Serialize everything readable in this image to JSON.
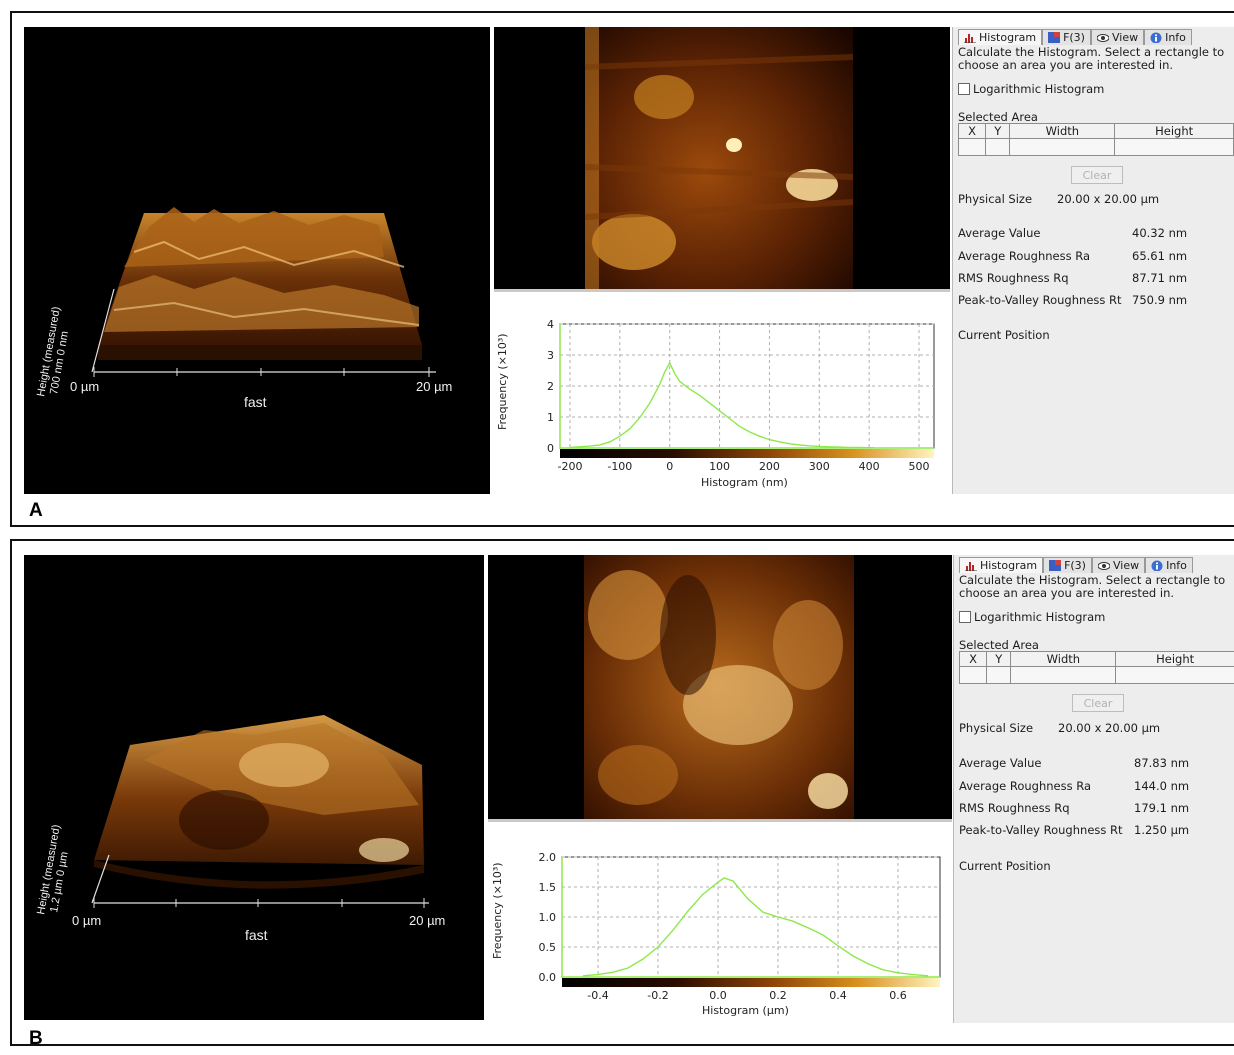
{
  "panels": [
    {
      "letter": "A",
      "view3d": {
        "x_start": "0 µm",
        "x_end": "20 µm",
        "x_label": "fast",
        "z_label_line1": "Height (measured)",
        "z_label_line2": "700 nm 0 nm"
      },
      "histogram": {
        "ylabel": "Frequency (×10³)",
        "xlabel": "Histogram (nm)",
        "yticks": [
          "0",
          "1",
          "2",
          "3",
          "4"
        ],
        "xticks": [
          "-200",
          "-100",
          "0",
          "100",
          "200",
          "300",
          "400",
          "500"
        ]
      },
      "side": {
        "tabs": [
          "Histogram",
          "F(3)",
          "View",
          "Info"
        ],
        "instructions": "Calculate the Histogram. Select a rectangle to choose an area you are interested in.",
        "log_checkbox": "Logarithmic Histogram",
        "selected_area_title": "Selected Area",
        "table_headers": [
          "X",
          "Y",
          "Width",
          "Height"
        ],
        "clear_label": "Clear",
        "physical_size_label": "Physical Size",
        "physical_size_value": "20.00 x 20.00 µm",
        "stats": [
          {
            "label": "Average Value",
            "value": "40.32 nm"
          },
          {
            "label": "Average Roughness Ra",
            "value": "65.61 nm"
          },
          {
            "label": "RMS Roughness Rq",
            "value": "87.71 nm"
          },
          {
            "label": "Peak-to-Valley Roughness Rt",
            "value": "750.9 nm"
          }
        ],
        "current_position_label": "Current Position"
      }
    },
    {
      "letter": "B",
      "view3d": {
        "x_start": "0 µm",
        "x_end": "20 µm",
        "x_label": "fast",
        "z_label_line1": "Height (measured)",
        "z_label_line2": "1.2 µm 0 µm"
      },
      "histogram": {
        "ylabel": "Frequency (×10³)",
        "xlabel": "Histogram (µm)",
        "yticks": [
          "0.0",
          "0.5",
          "1.0",
          "1.5",
          "2.0"
        ],
        "xticks": [
          "-0.4",
          "-0.2",
          "0.0",
          "0.2",
          "0.4",
          "0.6"
        ]
      },
      "side": {
        "tabs": [
          "Histogram",
          "F(3)",
          "View",
          "Info"
        ],
        "instructions": "Calculate the Histogram. Select a rectangle to choose an area you are interested in.",
        "log_checkbox": "Logarithmic Histogram",
        "selected_area_title": "Selected Area",
        "table_headers": [
          "X",
          "Y",
          "Width",
          "Height"
        ],
        "clear_label": "Clear",
        "physical_size_label": "Physical Size",
        "physical_size_value": "20.00 x 20.00 µm",
        "stats": [
          {
            "label": "Average Value",
            "value": "87.83 nm"
          },
          {
            "label": "Average Roughness Ra",
            "value": "144.0 nm"
          },
          {
            "label": "RMS Roughness Rq",
            "value": "179.1 nm"
          },
          {
            "label": "Peak-to-Valley Roughness Rt",
            "value": "1.250 µm"
          }
        ],
        "current_position_label": "Current Position"
      }
    }
  ],
  "colors": {
    "curve": "#8ee84a",
    "afm_dark": "#1a0800",
    "afm_mid": "#a0520f",
    "afm_light": "#ffd980",
    "panel_bg": "#ededed"
  },
  "icons": [
    "histogram-icon",
    "fft-icon",
    "eye-icon",
    "info-icon"
  ],
  "chart_data": [
    {
      "type": "area",
      "xlabel": "Histogram (nm)",
      "ylabel": "Frequency (×10³)",
      "xlim": [
        -220,
        530
      ],
      "ylim": [
        0,
        4
      ],
      "grid": true,
      "x": [
        -200,
        -180,
        -160,
        -140,
        -120,
        -100,
        -80,
        -60,
        -40,
        -20,
        -10,
        0,
        10,
        20,
        40,
        60,
        80,
        100,
        120,
        140,
        160,
        180,
        200,
        220,
        240,
        260,
        280,
        300,
        320,
        340,
        360,
        380,
        400,
        410
      ],
      "y": [
        0.02,
        0.04,
        0.06,
        0.1,
        0.2,
        0.38,
        0.62,
        0.98,
        1.45,
        2.05,
        2.45,
        2.75,
        2.4,
        2.15,
        1.9,
        1.7,
        1.45,
        1.2,
        0.95,
        0.7,
        0.52,
        0.38,
        0.27,
        0.2,
        0.14,
        0.1,
        0.07,
        0.05,
        0.04,
        0.03,
        0.02,
        0.015,
        0.01,
        0.01
      ]
    },
    {
      "type": "area",
      "xlabel": "Histogram (µm)",
      "ylabel": "Frequency (×10³)",
      "xlim": [
        -0.52,
        0.74
      ],
      "ylim": [
        0,
        2.0
      ],
      "grid": true,
      "x": [
        -0.45,
        -0.4,
        -0.35,
        -0.3,
        -0.25,
        -0.2,
        -0.15,
        -0.1,
        -0.05,
        0.0,
        0.02,
        0.05,
        0.1,
        0.15,
        0.2,
        0.25,
        0.3,
        0.35,
        0.4,
        0.45,
        0.5,
        0.55,
        0.6,
        0.65,
        0.7
      ],
      "y": [
        0.02,
        0.04,
        0.08,
        0.15,
        0.3,
        0.5,
        0.78,
        1.1,
        1.38,
        1.58,
        1.65,
        1.6,
        1.3,
        1.08,
        1.0,
        0.93,
        0.82,
        0.7,
        0.52,
        0.35,
        0.22,
        0.12,
        0.07,
        0.04,
        0.02
      ]
    }
  ]
}
